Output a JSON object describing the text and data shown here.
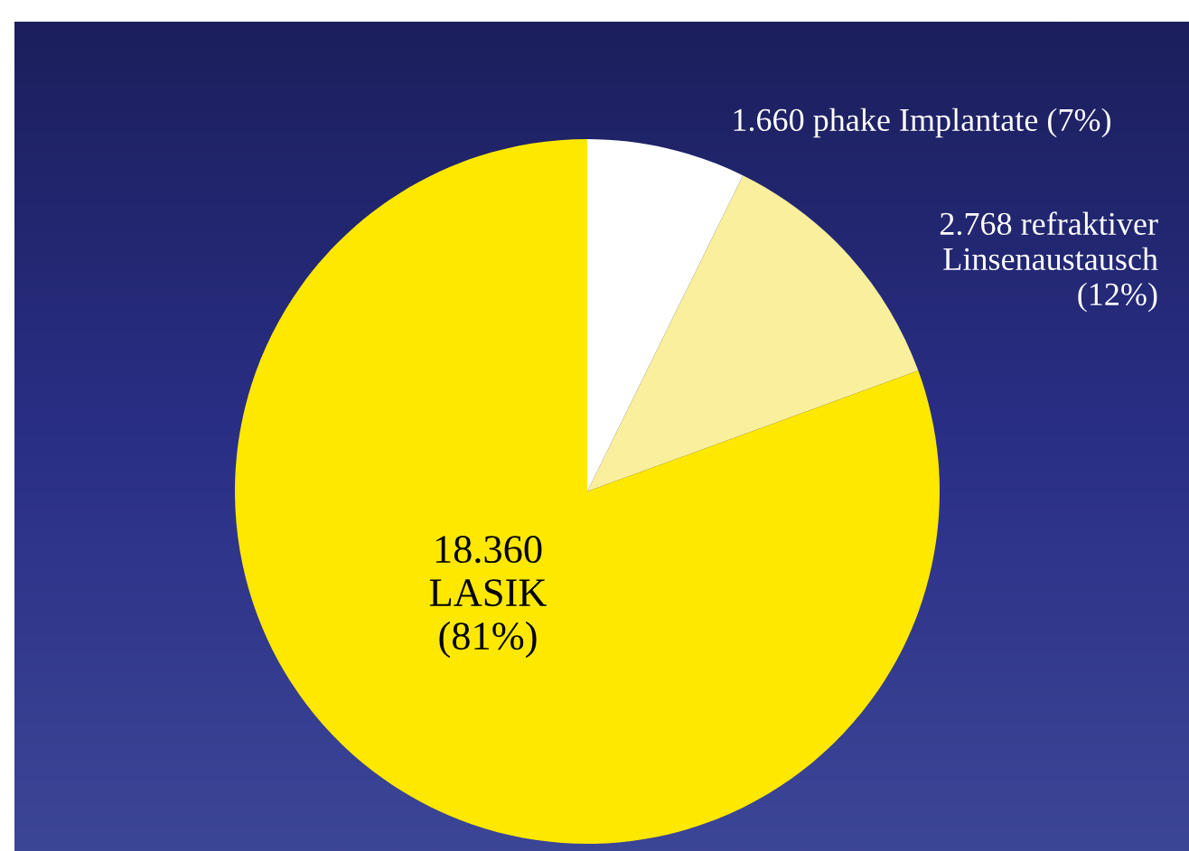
{
  "chart_data": {
    "type": "pie",
    "categories": [
      "1.660 phake Implantate (7%)",
      "2.768 refraktiver\nLinsenaustausch\n(12%)",
      "18.360\nLASIK\n(81%)"
    ],
    "values": [
      1660,
      2768,
      18360
    ],
    "colors": [
      "#ffffff",
      "#f9ef9c",
      "#ffe800"
    ]
  }
}
